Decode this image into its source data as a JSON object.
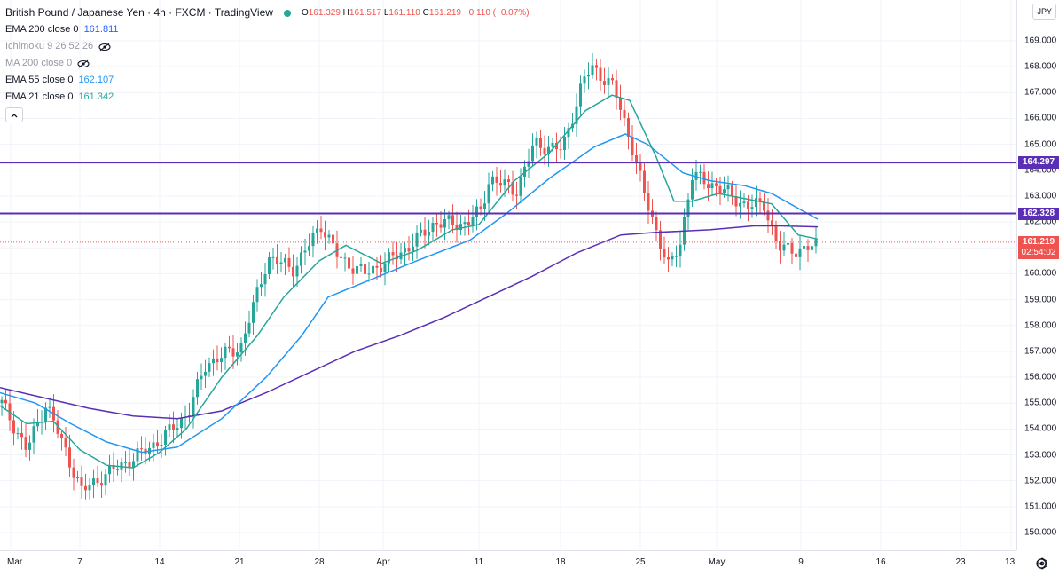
{
  "legend": {
    "title": "British Pound / Japanese Yen · 4h · FXCM · TradingView",
    "status_color": "#26a69a",
    "ohlc": {
      "o_label": "O",
      "o_value": "161.329",
      "h_label": "H",
      "h_value": "161.517",
      "l_label": "L",
      "l_value": "161.110",
      "c_label": "C",
      "c_value": "161.219",
      "change": "−0.110 (−0.07%)",
      "color": "#ef5350"
    },
    "indicators": [
      {
        "name": "EMA 200 close 0",
        "value": "161.811",
        "value_color": "#2962ff",
        "visible": true
      },
      {
        "name": "Ichimoku 9 26 52 26",
        "value": "",
        "visible": false,
        "icon": "eye-off-icon"
      },
      {
        "name": "MA 200 close 0",
        "value": "",
        "visible": false,
        "icon": "eye-off-icon"
      },
      {
        "name": "EMA 55 close 0",
        "value": "162.107",
        "value_color": "#2196f3",
        "visible": true
      },
      {
        "name": "EMA 21 close 0",
        "value": "161.342",
        "value_color": "#26a69a",
        "visible": true
      }
    ],
    "collapse_icon": "chevron-up-icon"
  },
  "currency": "JPY",
  "price_scale": {
    "labels": [
      "169.000",
      "168.000",
      "167.000",
      "166.000",
      "165.000",
      "164.000",
      "163.000",
      "162.000",
      "161.000",
      "160.000",
      "159.000",
      "158.000",
      "157.000",
      "156.000",
      "155.000",
      "154.000",
      "153.000",
      "152.000",
      "151.000",
      "150.000"
    ],
    "tags": [
      {
        "value": "164.297",
        "color": "#5b2fb5",
        "sub": ""
      },
      {
        "value": "162.328",
        "color": "#5b2fb5",
        "sub": ""
      },
      {
        "value": "161.219",
        "color": "#ef5350",
        "sub": "02:54:02"
      }
    ]
  },
  "time_scale": {
    "labels": [
      "Mar",
      "7",
      "14",
      "21",
      "28",
      "Apr",
      "11",
      "18",
      "25",
      "May",
      "9",
      "16",
      "23",
      "13:"
    ],
    "settings_icon": "settings-icon"
  },
  "chart_data": {
    "type": "candlestick",
    "symbol": "British Pound / Japanese Yen",
    "interval": "4h",
    "ylim": [
      149.5,
      169.5
    ],
    "horizontal_lines": [
      {
        "value": 164.297,
        "color": "#5b2fb5"
      },
      {
        "value": 162.328,
        "color": "#5b2fb5"
      }
    ],
    "last_price": 161.219,
    "close_path": [
      {
        "date": "Mar 1",
        "close": 155.0
      },
      {
        "date": "Mar 3",
        "close": 153.2
      },
      {
        "date": "Mar 4",
        "close": 155.0
      },
      {
        "date": "Mar 7",
        "close": 151.6
      },
      {
        "date": "Mar 9",
        "close": 152.3
      },
      {
        "date": "Mar 11",
        "close": 152.9
      },
      {
        "date": "Mar 14",
        "close": 153.6
      },
      {
        "date": "Mar 16",
        "close": 154.6
      },
      {
        "date": "Mar 18",
        "close": 156.5
      },
      {
        "date": "Mar 21",
        "close": 157.2
      },
      {
        "date": "Mar 23",
        "close": 160.6
      },
      {
        "date": "Mar 25",
        "close": 160.2
      },
      {
        "date": "Mar 28",
        "close": 161.9
      },
      {
        "date": "Mar 29",
        "close": 160.6
      },
      {
        "date": "Mar 31",
        "close": 160.0
      },
      {
        "date": "Apr 4",
        "close": 160.8
      },
      {
        "date": "Apr 6",
        "close": 162.0
      },
      {
        "date": "Apr 8",
        "close": 161.9
      },
      {
        "date": "Apr 11",
        "close": 162.4
      },
      {
        "date": "Apr 12",
        "close": 163.7
      },
      {
        "date": "Apr 14",
        "close": 163.2
      },
      {
        "date": "Apr 16",
        "close": 165.0
      },
      {
        "date": "Apr 18",
        "close": 164.8
      },
      {
        "date": "Apr 20",
        "close": 167.4
      },
      {
        "date": "Apr 21",
        "close": 168.0
      },
      {
        "date": "Apr 23",
        "close": 167.2
      },
      {
        "date": "Apr 25",
        "close": 165.0
      },
      {
        "date": "Apr 26",
        "close": 163.0
      },
      {
        "date": "Apr 27",
        "close": 160.2
      },
      {
        "date": "Apr 28",
        "close": 161.2
      },
      {
        "date": "Apr 29",
        "close": 163.8
      },
      {
        "date": "May 2",
        "close": 163.3
      },
      {
        "date": "May 4",
        "close": 162.6
      },
      {
        "date": "May 6",
        "close": 162.7
      },
      {
        "date": "May 6b",
        "close": 161.0
      },
      {
        "date": "May 9",
        "close": 160.9
      },
      {
        "date": "May 10",
        "close": 161.219
      }
    ],
    "series": [
      {
        "name": "EMA 200 close 0",
        "color": "#5b2fb5",
        "points": [
          [
            0,
            155.6
          ],
          [
            50,
            155.2
          ],
          [
            100,
            154.8
          ],
          [
            150,
            154.5
          ],
          [
            200,
            154.4
          ],
          [
            250,
            154.7
          ],
          [
            300,
            155.4
          ],
          [
            350,
            156.2
          ],
          [
            400,
            157.0
          ],
          [
            450,
            157.6
          ],
          [
            500,
            158.3
          ],
          [
            550,
            159.1
          ],
          [
            600,
            159.9
          ],
          [
            650,
            160.8
          ],
          [
            700,
            161.5
          ],
          [
            740,
            161.6
          ],
          [
            800,
            161.7
          ],
          [
            850,
            161.85
          ],
          [
            880,
            161.85
          ],
          [
            922,
            161.811
          ]
        ]
      },
      {
        "name": "EMA 55 close 0",
        "color": "#2196f3",
        "points": [
          [
            0,
            155.4
          ],
          [
            40,
            155.0
          ],
          [
            80,
            154.2
          ],
          [
            120,
            153.5
          ],
          [
            160,
            153.1
          ],
          [
            200,
            153.3
          ],
          [
            250,
            154.4
          ],
          [
            300,
            156.0
          ],
          [
            340,
            157.6
          ],
          [
            370,
            159.1
          ],
          [
            420,
            159.8
          ],
          [
            470,
            160.5
          ],
          [
            530,
            161.3
          ],
          [
            570,
            162.3
          ],
          [
            620,
            163.7
          ],
          [
            670,
            164.9
          ],
          [
            705,
            165.4
          ],
          [
            730,
            165.0
          ],
          [
            770,
            163.9
          ],
          [
            800,
            163.6
          ],
          [
            840,
            163.4
          ],
          [
            870,
            163.1
          ],
          [
            922,
            162.107
          ]
        ]
      },
      {
        "name": "EMA 21 close 0",
        "color": "#26a69a",
        "points": [
          [
            0,
            154.9
          ],
          [
            30,
            154.2
          ],
          [
            60,
            154.3
          ],
          [
            90,
            153.2
          ],
          [
            120,
            152.6
          ],
          [
            150,
            152.5
          ],
          [
            180,
            153.1
          ],
          [
            210,
            154.0
          ],
          [
            250,
            156.0
          ],
          [
            290,
            157.6
          ],
          [
            320,
            159.1
          ],
          [
            360,
            160.5
          ],
          [
            390,
            161.1
          ],
          [
            430,
            160.4
          ],
          [
            470,
            160.9
          ],
          [
            510,
            161.7
          ],
          [
            540,
            161.9
          ],
          [
            580,
            163.6
          ],
          [
            620,
            164.7
          ],
          [
            660,
            166.3
          ],
          [
            690,
            166.9
          ],
          [
            710,
            166.7
          ],
          [
            740,
            164.5
          ],
          [
            760,
            162.8
          ],
          [
            780,
            162.8
          ],
          [
            810,
            163.1
          ],
          [
            840,
            162.9
          ],
          [
            870,
            162.7
          ],
          [
            900,
            161.5
          ],
          [
            922,
            161.342
          ]
        ]
      }
    ]
  }
}
